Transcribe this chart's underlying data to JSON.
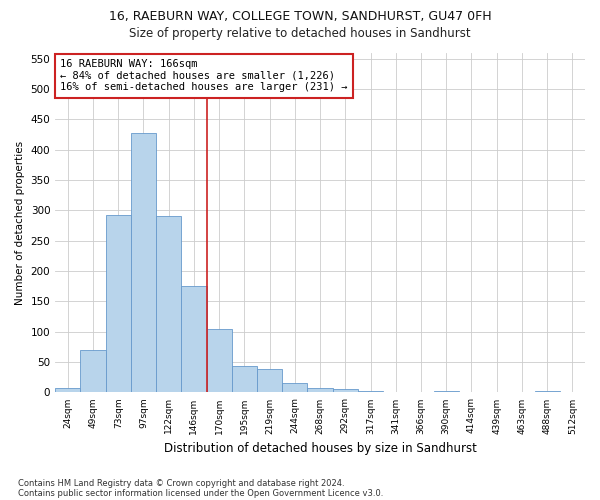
{
  "title": "16, RAEBURN WAY, COLLEGE TOWN, SANDHURST, GU47 0FH",
  "subtitle": "Size of property relative to detached houses in Sandhurst",
  "xlabel": "Distribution of detached houses by size in Sandhurst",
  "ylabel": "Number of detached properties",
  "bar_color": "#b8d4eb",
  "bar_edge_color": "#6699cc",
  "categories": [
    "24sqm",
    "49sqm",
    "73sqm",
    "97sqm",
    "122sqm",
    "146sqm",
    "170sqm",
    "195sqm",
    "219sqm",
    "244sqm",
    "268sqm",
    "292sqm",
    "317sqm",
    "341sqm",
    "366sqm",
    "390sqm",
    "414sqm",
    "439sqm",
    "463sqm",
    "488sqm",
    "512sqm"
  ],
  "values": [
    8,
    70,
    293,
    427,
    291,
    176,
    105,
    44,
    38,
    16,
    8,
    5,
    3,
    1,
    0,
    3,
    0,
    0,
    0,
    3,
    0
  ],
  "ylim": [
    0,
    560
  ],
  "yticks": [
    0,
    50,
    100,
    150,
    200,
    250,
    300,
    350,
    400,
    450,
    500,
    550
  ],
  "vline_x": 5.5,
  "vline_color": "#cc2222",
  "annotation_line1": "16 RAEBURN WAY: 166sqm",
  "annotation_line2": "← 84% of detached houses are smaller (1,226)",
  "annotation_line3": "16% of semi-detached houses are larger (231) →",
  "annotation_box_color": "#cc2222",
  "annotation_bg": "#ffffff",
  "footer1": "Contains HM Land Registry data © Crown copyright and database right 2024.",
  "footer2": "Contains public sector information licensed under the Open Government Licence v3.0.",
  "background_color": "#ffffff",
  "grid_color": "#cccccc"
}
